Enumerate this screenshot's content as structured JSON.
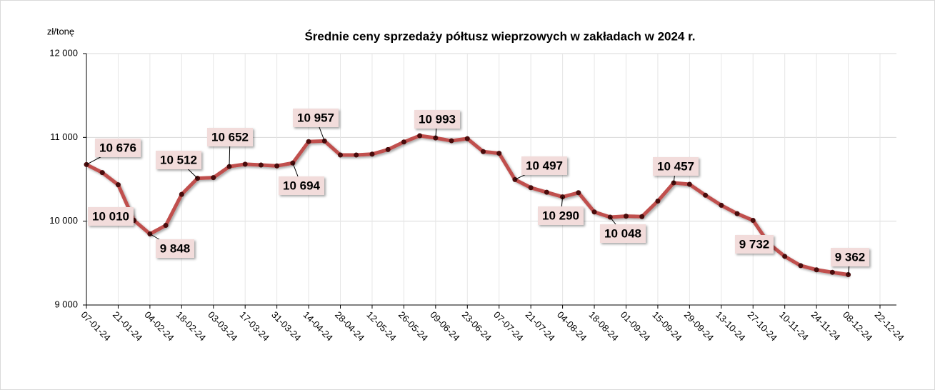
{
  "chart_data": {
    "type": "line",
    "title": "Średnie ceny sprzedaży półtusz wieprzowych w zakładach w 2024 r.",
    "y_label": "zł/tonę",
    "categories": [
      "07-01-24",
      null,
      "21-01-24",
      null,
      "04-02-24",
      null,
      "18-02-24",
      null,
      "03-03-24",
      null,
      "17-03-24",
      null,
      "31-03-24",
      null,
      "14-04-24",
      null,
      "28-04-24",
      null,
      "12-05-24",
      null,
      "26-05-24",
      null,
      "09-06-24",
      null,
      "23-06-24",
      null,
      "07-07-24",
      null,
      "21-07-24",
      null,
      "04-08-24",
      null,
      "18-08-24",
      null,
      "01-09-24",
      null,
      "15-09-24",
      null,
      "29-09-24",
      null,
      "13-10-24",
      null,
      "27-10-24",
      null,
      "10-11-24",
      null,
      "24-11-24",
      null,
      "08-12-24",
      null,
      "22-12-24"
    ],
    "values": [
      10676,
      10580,
      10435,
      10010,
      9848,
      9950,
      10320,
      10512,
      10520,
      10652,
      10680,
      10670,
      10660,
      10694,
      10950,
      10957,
      10790,
      10790,
      10800,
      10855,
      10945,
      11020,
      10993,
      10960,
      10985,
      10830,
      10810,
      10497,
      10400,
      10345,
      10290,
      10340,
      10110,
      10048,
      10060,
      10055,
      10240,
      10457,
      10440,
      10310,
      10190,
      10090,
      10010,
      9732,
      9580,
      9470,
      9420,
      9390,
      9362,
      null,
      null
    ],
    "value_labels": [
      "10 676",
      null,
      null,
      "10 010",
      "9 848",
      null,
      null,
      "10 512",
      null,
      "10 652",
      null,
      null,
      null,
      "10 694",
      null,
      "10 957",
      null,
      null,
      null,
      null,
      null,
      null,
      "10 993",
      null,
      null,
      null,
      null,
      "10 497",
      null,
      null,
      "10 290",
      null,
      null,
      "10 048",
      null,
      null,
      null,
      "10 457",
      null,
      null,
      null,
      null,
      null,
      "9 732",
      null,
      null,
      null,
      null,
      "9 362",
      null,
      null
    ],
    "color": "#c0504d",
    "marker_color": "#4a0c0c",
    "label_fill": "#f2dcdb",
    "ylim": [
      9000,
      12000
    ],
    "yticks": [
      {
        "value": 9000,
        "label": "9 000"
      },
      {
        "value": 10000,
        "label": "10 000"
      },
      {
        "value": 11000,
        "label": "11 000"
      },
      {
        "value": 12000,
        "label": "12 000"
      }
    ],
    "grid": true
  }
}
